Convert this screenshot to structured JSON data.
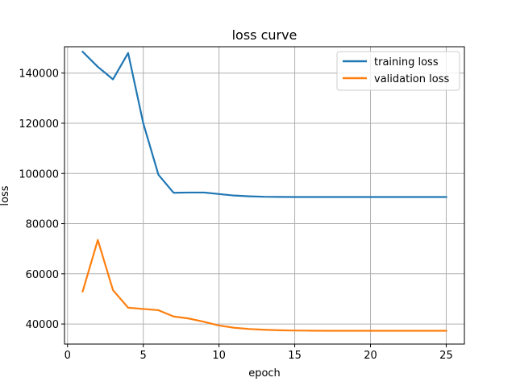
{
  "chart_data": {
    "type": "line",
    "title": "loss curve",
    "xlabel": "epoch",
    "ylabel": "loss",
    "xlim": [
      -0.2,
      26.2
    ],
    "ylim": [
      32000,
      150500
    ],
    "xticks": [
      0,
      5,
      10,
      15,
      20,
      25
    ],
    "yticks": [
      40000,
      60000,
      80000,
      100000,
      120000,
      140000
    ],
    "grid": true,
    "legend_position": "top-right",
    "x": [
      1,
      2,
      3,
      4,
      5,
      6,
      7,
      8,
      9,
      10,
      11,
      12,
      13,
      14,
      15,
      16,
      17,
      18,
      19,
      20,
      21,
      22,
      23,
      24,
      25
    ],
    "series": [
      {
        "name": "training loss",
        "color": "#1f77b4",
        "values": [
          148500,
          142500,
          137500,
          148000,
          120000,
          99500,
          92300,
          92400,
          92400,
          91800,
          91200,
          90900,
          90700,
          90650,
          90600,
          90600,
          90600,
          90600,
          90600,
          90600,
          90600,
          90600,
          90600,
          90600,
          90600
        ]
      },
      {
        "name": "validation loss",
        "color": "#ff7f0e",
        "values": [
          53000,
          73500,
          53500,
          46500,
          46000,
          45500,
          43000,
          42200,
          40900,
          39400,
          38500,
          38000,
          37700,
          37500,
          37400,
          37350,
          37300,
          37300,
          37300,
          37300,
          37300,
          37300,
          37300,
          37300,
          37300
        ]
      }
    ]
  }
}
